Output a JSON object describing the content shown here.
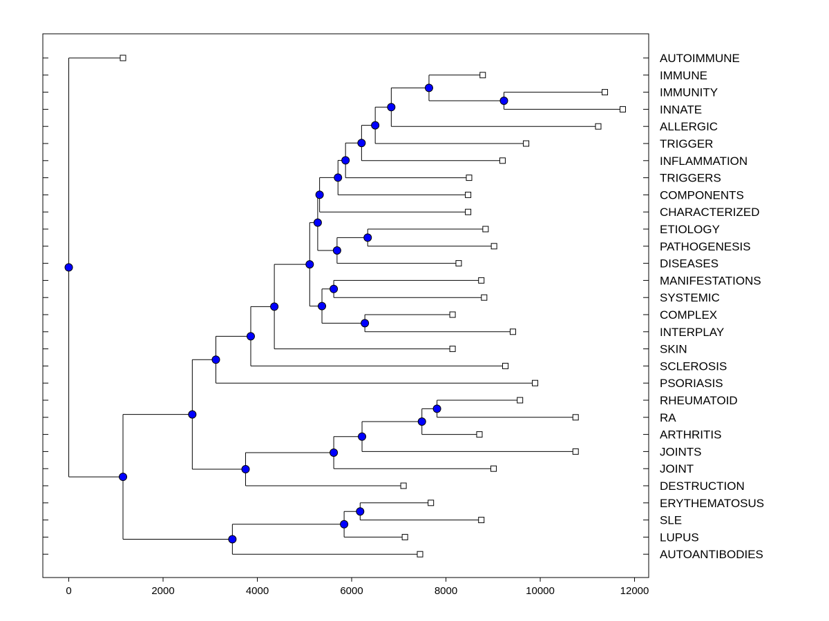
{
  "chart_data": {
    "type": "dendrogram",
    "title": "",
    "xlabel": "",
    "ylabel": "",
    "xlim": [
      -550,
      12300
    ],
    "x_ticks": [
      0,
      2000,
      4000,
      6000,
      8000,
      10000,
      12000
    ],
    "x_tick_labels": [
      "0",
      "2000",
      "4000",
      "6000",
      "8000",
      "10000",
      "12000"
    ],
    "grid": false,
    "leaves": [
      {
        "label": "AUTOIMMUNE",
        "value": 1150
      },
      {
        "label": "IMMUNE",
        "value": 8780
      },
      {
        "label": "IMMUNITY",
        "value": 11370
      },
      {
        "label": "INNATE",
        "value": 11750
      },
      {
        "label": "ALLERGIC",
        "value": 11230
      },
      {
        "label": "TRIGGER",
        "value": 9700
      },
      {
        "label": "INFLAMMATION",
        "value": 9200
      },
      {
        "label": "TRIGGERS",
        "value": 8490
      },
      {
        "label": "COMPONENTS",
        "value": 8470
      },
      {
        "label": "CHARACTERIZED",
        "value": 8470
      },
      {
        "label": "ETIOLOGY",
        "value": 8840
      },
      {
        "label": "PATHOGENESIS",
        "value": 9020
      },
      {
        "label": "DISEASES",
        "value": 8270
      },
      {
        "label": "MANIFESTATIONS",
        "value": 8750
      },
      {
        "label": "SYSTEMIC",
        "value": 8810
      },
      {
        "label": "COMPLEX",
        "value": 8140
      },
      {
        "label": "INTERPLAY",
        "value": 9420
      },
      {
        "label": "SKIN",
        "value": 8140
      },
      {
        "label": "SCLEROSIS",
        "value": 9260
      },
      {
        "label": "PSORIASIS",
        "value": 9890
      },
      {
        "label": "RHEUMATOID",
        "value": 9570
      },
      {
        "label": "RA",
        "value": 10750
      },
      {
        "label": "ARTHRITIS",
        "value": 8710
      },
      {
        "label": "JOINTS",
        "value": 10750
      },
      {
        "label": "JOINT",
        "value": 9010
      },
      {
        "label": "DESTRUCTION",
        "value": 7100
      },
      {
        "label": "ERYTHEMATOSUS",
        "value": 7680
      },
      {
        "label": "SLE",
        "value": 8750
      },
      {
        "label": "LUPUS",
        "value": 7130
      },
      {
        "label": "AUTOANTIBODIES",
        "value": 7450
      }
    ],
    "nodes": [
      {
        "id": "n_root",
        "value": 0,
        "children": [
          "L0",
          "n_a"
        ]
      },
      {
        "id": "n_a",
        "value": 1150,
        "children": [
          "n_b",
          "n_lupus"
        ]
      },
      {
        "id": "n_b",
        "value": 2620,
        "children": [
          "n_c",
          "n_j"
        ]
      },
      {
        "id": "n_c",
        "value": 3120,
        "children": [
          "n_d",
          "L19"
        ]
      },
      {
        "id": "n_d",
        "value": 3860,
        "children": [
          "n_e",
          "L18"
        ]
      },
      {
        "id": "n_e",
        "value": 4360,
        "children": [
          "n_f",
          "L17"
        ]
      },
      {
        "id": "n_f",
        "value": 5110,
        "children": [
          "n_g",
          "n_s"
        ]
      },
      {
        "id": "n_g",
        "value": 5280,
        "children": [
          "n_h",
          "n_p"
        ]
      },
      {
        "id": "n_h",
        "value": 5320,
        "children": [
          "n_i",
          "L9"
        ]
      },
      {
        "id": "n_i",
        "value": 5710,
        "children": [
          "n_k",
          "L8"
        ]
      },
      {
        "id": "n_k",
        "value": 5870,
        "children": [
          "n_l",
          "L7"
        ]
      },
      {
        "id": "n_l",
        "value": 6190,
        "children": [
          "n_m",
          "L6"
        ]
      },
      {
        "id": "n_m",
        "value": 6210,
        "children": [
          "n_n",
          "L5"
        ]
      },
      {
        "id": "n_n",
        "value": 6500,
        "children": [
          "n_o",
          "L4"
        ]
      },
      {
        "id": "n_o",
        "value": 6840,
        "children": [
          "n_q",
          "L1"
        ]
      },
      {
        "id": "n_q",
        "value": 7640,
        "children": [
          "n_r",
          "L1b"
        ]
      },
      {
        "id": "n_r",
        "value": 9230,
        "children": [
          "L2",
          "L3"
        ]
      },
      {
        "id": "n_p",
        "value": 5690,
        "children": [
          "n_p2",
          "L12"
        ]
      },
      {
        "id": "n_p2",
        "value": 6340,
        "children": [
          "L10",
          "L11"
        ]
      },
      {
        "id": "n_s",
        "value": 5370,
        "children": [
          "n_t",
          "n_u"
        ]
      },
      {
        "id": "n_t",
        "value": 5620,
        "children": [
          "L13",
          "L14"
        ]
      },
      {
        "id": "n_u",
        "value": 6280,
        "children": [
          "L15",
          "L16"
        ]
      },
      {
        "id": "n_j",
        "value": 3750,
        "children": [
          "n_j2",
          "L25"
        ]
      },
      {
        "id": "n_j2",
        "value": 5620,
        "children": [
          "n_j3",
          "L24"
        ]
      },
      {
        "id": "n_j3",
        "value": 6220,
        "children": [
          "n_j4",
          "L23"
        ]
      },
      {
        "id": "n_j4",
        "value": 7490,
        "children": [
          "n_j5",
          "L22"
        ]
      },
      {
        "id": "n_j5",
        "value": 7810,
        "children": [
          "L20",
          "L21"
        ]
      },
      {
        "id": "n_lupus",
        "value": 3470,
        "children": [
          "n_l2",
          "L29"
        ]
      },
      {
        "id": "n_l2",
        "value": 5840,
        "children": [
          "n_l3",
          "L28"
        ]
      },
      {
        "id": "n_l3",
        "value": 6180,
        "children": [
          "L26",
          "L27"
        ]
      }
    ]
  }
}
